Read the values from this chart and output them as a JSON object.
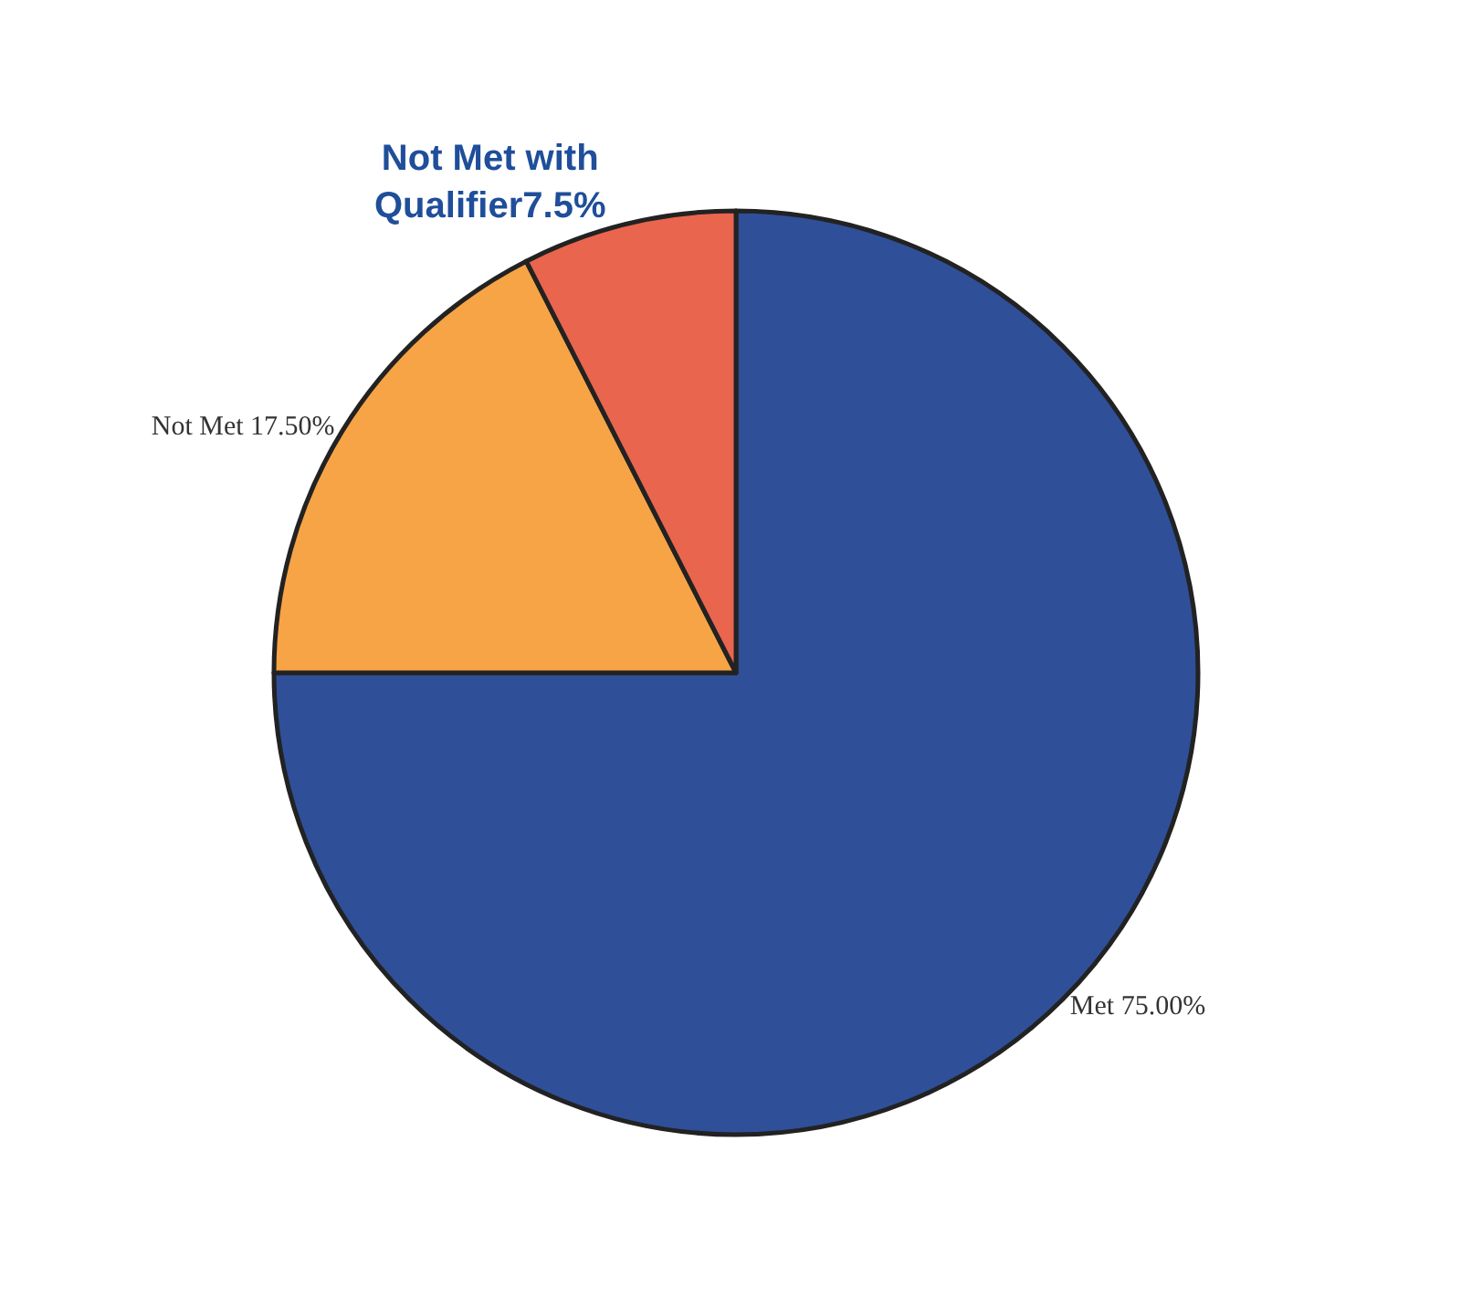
{
  "chart_data": {
    "type": "pie",
    "categories": [
      "Met 75.00%",
      "Not Met 17.50%",
      "Not Met with\nQualifier7.5%"
    ],
    "values": [
      75,
      17.5,
      7.5
    ],
    "colors": [
      "#2f4f98",
      "#f6a445",
      "#e9654e"
    ],
    "legend": false
  }
}
